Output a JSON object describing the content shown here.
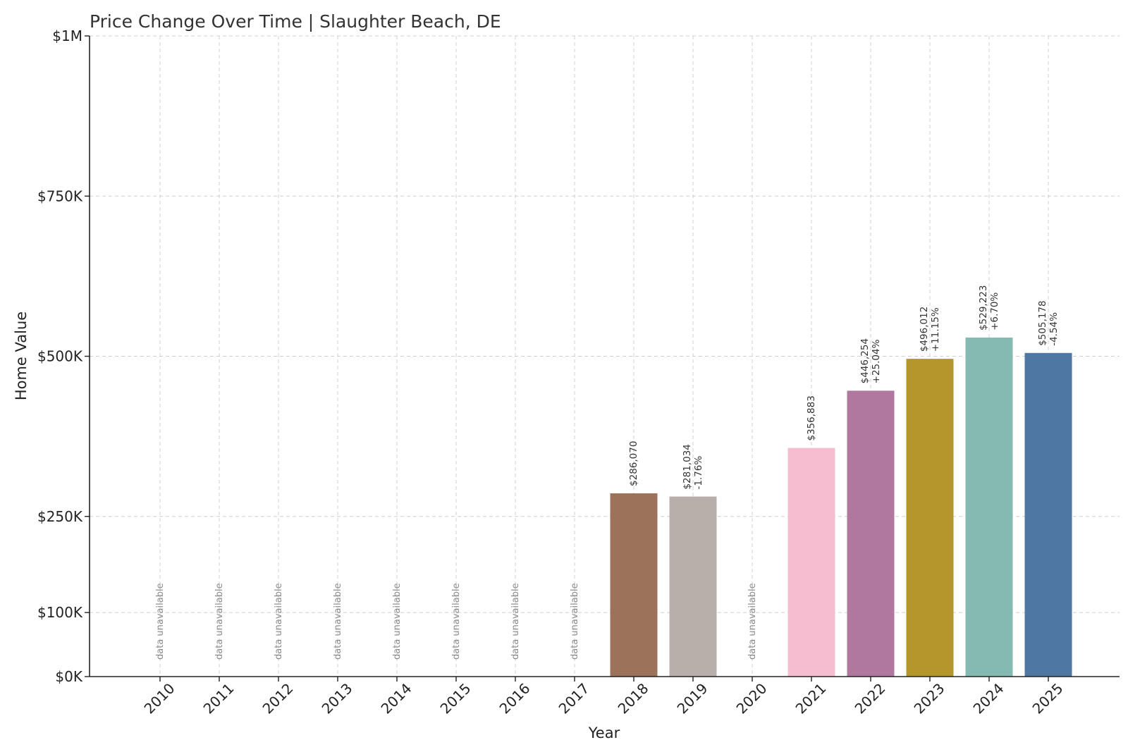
{
  "chart_data": {
    "type": "bar",
    "title": "Price Change Over Time | Slaughter Beach, DE",
    "xlabel": "Year",
    "ylabel": "Home Value",
    "ylim": [
      0,
      1000000
    ],
    "yticks": [
      {
        "value": 0,
        "label": "$0K"
      },
      {
        "value": 100000,
        "label": "$100K"
      },
      {
        "value": 250000,
        "label": "$250K"
      },
      {
        "value": 500000,
        "label": "$500K"
      },
      {
        "value": 750000,
        "label": "$750K"
      },
      {
        "value": 1000000,
        "label": "$1M"
      }
    ],
    "grid": true,
    "unavailable_label": "data unavailable",
    "categories": [
      "2010",
      "2011",
      "2012",
      "2013",
      "2014",
      "2015",
      "2016",
      "2017",
      "2018",
      "2019",
      "2020",
      "2021",
      "2022",
      "2023",
      "2024",
      "2025"
    ],
    "values": [
      null,
      null,
      null,
      null,
      null,
      null,
      null,
      null,
      286070,
      281034,
      null,
      356883,
      446254,
      496012,
      529223,
      505178
    ],
    "value_labels": [
      "",
      "",
      "",
      "",
      "",
      "",
      "",
      "",
      "$286,070",
      "$281,034",
      "",
      "$356,883",
      "$446,254",
      "$496,012",
      "$529,223",
      "$505,178"
    ],
    "change_labels": [
      "",
      "",
      "",
      "",
      "",
      "",
      "",
      "",
      "",
      "-1.76%",
      "",
      "",
      "+25.04%",
      "+11.15%",
      "+6.70%",
      "-4.54%"
    ],
    "colors": [
      "",
      "",
      "",
      "",
      "",
      "",
      "",
      "",
      "#9c735a",
      "#b8afaa",
      "",
      "#f6bcd0",
      "#b0779f",
      "#b4962c",
      "#84bab2",
      "#4e77a4"
    ]
  }
}
